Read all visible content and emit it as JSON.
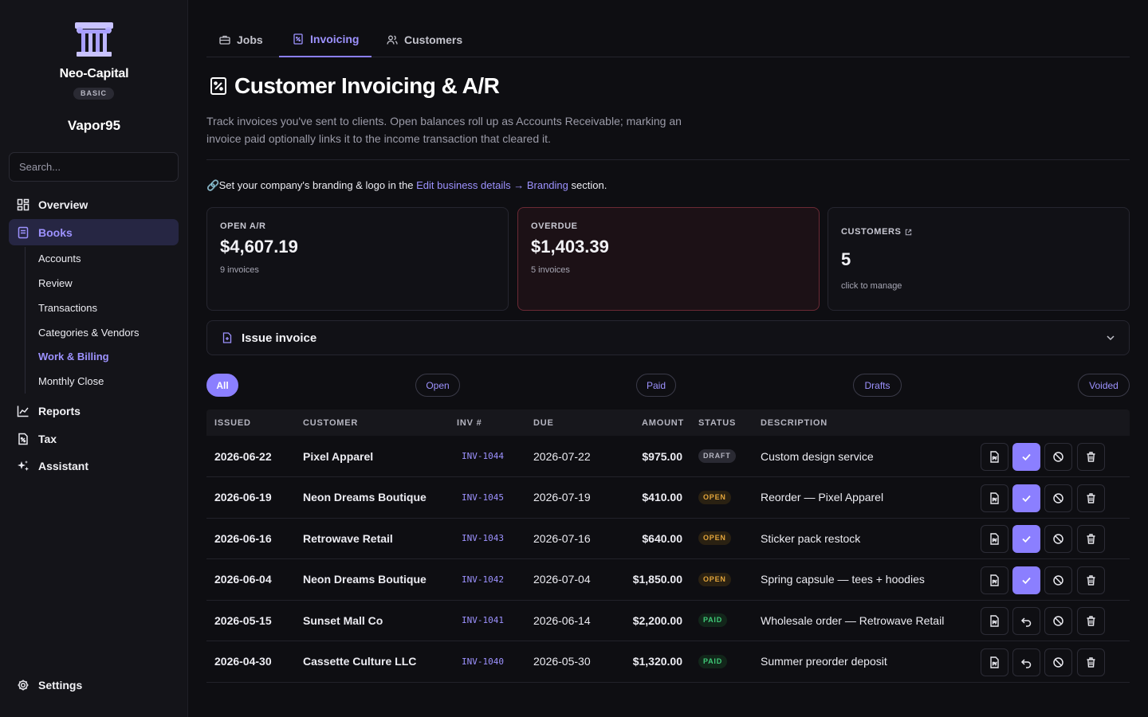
{
  "sidebar": {
    "org_name": "Neo-Capital",
    "plan": "BASIC",
    "user_name": "Vapor95",
    "search_placeholder": "Search...",
    "nav": [
      {
        "label": "Overview",
        "icon": "grid-icon"
      },
      {
        "label": "Books",
        "icon": "book-icon",
        "active": true
      },
      {
        "label": "Reports",
        "icon": "chart-icon"
      },
      {
        "label": "Tax",
        "icon": "tax-icon"
      },
      {
        "label": "Assistant",
        "icon": "sparkle-icon"
      }
    ],
    "books_sub": [
      "Accounts",
      "Review",
      "Transactions",
      "Categories & Vendors",
      "Work & Billing",
      "Monthly Close"
    ],
    "active_sub": "Work & Billing",
    "settings_label": "Settings"
  },
  "tabs": [
    {
      "label": "Jobs",
      "icon": "briefcase-icon"
    },
    {
      "label": "Invoicing",
      "icon": "receipt-icon",
      "active": true
    },
    {
      "label": "Customers",
      "icon": "users-icon"
    }
  ],
  "page": {
    "title": "Customer Invoicing & A/R",
    "description": "Track invoices you've sent to clients. Open balances roll up as Accounts Receivable; marking an invoice paid optionally links it to the income transaction that cleared it.",
    "branding_prefix": "Set your company's branding & logo in the",
    "branding_link": "Edit business details → Branding",
    "branding_suffix": "section."
  },
  "cards": {
    "open_ar": {
      "label": "OPEN A/R",
      "value": "$4,607.19",
      "sub": "9 invoices"
    },
    "overdue": {
      "label": "OVERDUE",
      "value": "$1,403.39",
      "sub": "5 invoices"
    },
    "customers": {
      "label": "CUSTOMERS",
      "value": "5",
      "sub": "click to manage"
    }
  },
  "issue_invoice_label": "Issue invoice",
  "filters": [
    "All",
    "Open",
    "Paid",
    "Drafts",
    "Voided"
  ],
  "table": {
    "headers": {
      "issued": "ISSUED",
      "customer": "CUSTOMER",
      "inv": "INV #",
      "due": "DUE",
      "amount": "AMOUNT",
      "status": "STATUS",
      "description": "DESCRIPTION"
    },
    "rows": [
      {
        "issued": "2026-06-22",
        "customer": "Pixel Apparel",
        "inv": "INV-1044",
        "due": "2026-07-22",
        "amount": "$975.00",
        "status": "DRAFT",
        "description": "Custom design service"
      },
      {
        "issued": "2026-06-19",
        "customer": "Neon Dreams Boutique",
        "inv": "INV-1045",
        "due": "2026-07-19",
        "amount": "$410.00",
        "status": "OPEN",
        "description": "Reorder — Pixel Apparel"
      },
      {
        "issued": "2026-06-16",
        "customer": "Retrowave Retail",
        "inv": "INV-1043",
        "due": "2026-07-16",
        "amount": "$640.00",
        "status": "OPEN",
        "description": "Sticker pack restock"
      },
      {
        "issued": "2026-06-04",
        "customer": "Neon Dreams Boutique",
        "inv": "INV-1042",
        "due": "2026-07-04",
        "amount": "$1,850.00",
        "status": "OPEN",
        "description": "Spring capsule — tees + hoodies"
      },
      {
        "issued": "2026-05-15",
        "customer": "Sunset Mall Co",
        "inv": "INV-1041",
        "due": "2026-06-14",
        "amount": "$2,200.00",
        "status": "PAID",
        "description": "Wholesale order — Retrowave Retail"
      },
      {
        "issued": "2026-04-30",
        "customer": "Cassette Culture LLC",
        "inv": "INV-1040",
        "due": "2026-05-30",
        "amount": "$1,320.00",
        "status": "PAID",
        "description": "Summer preorder deposit"
      }
    ]
  },
  "colors": {
    "accent": "#8b7fff",
    "open": "#e3a53b",
    "paid": "#3fc977",
    "overdue_border": "#6b2a35"
  }
}
